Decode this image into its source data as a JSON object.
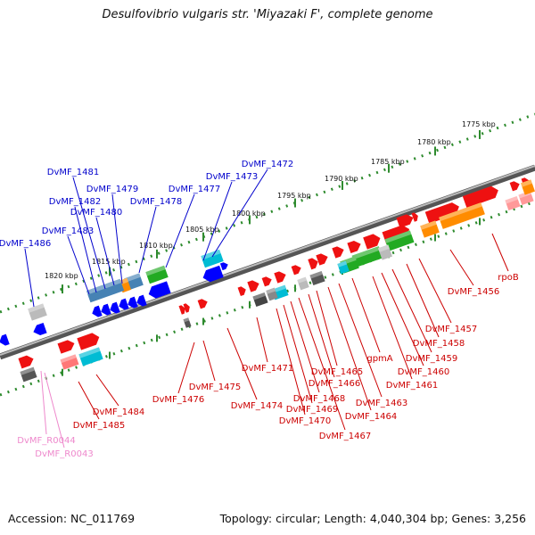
{
  "title": "Desulfovibrio vulgaris str. 'Miyazaki F', complete genome",
  "footer": {
    "accession": "Accession: NC_011769",
    "summary": "Topology: circular; Length: 4,040,304 bp; Genes: 3,256"
  },
  "colors": {
    "forward_gene": "#ff0000",
    "reverse_gene": "#0000ff",
    "forward_label": "#cc0000",
    "reverse_label": "#0000cc",
    "rna_label": "#ee88cc",
    "scale_ticks": "#2e8b2e",
    "backbone": "#888888"
  },
  "scale_labels": [
    "1775 kbp",
    "1780 kbp",
    "1785 kbp",
    "1790 kbp",
    "1795 kbp",
    "1800 kbp",
    "1805 kbp",
    "1810 kbp",
    "1815 kbp",
    "1820 kbp"
  ],
  "reverse_labels": [
    "DvMF_1472",
    "DvMF_1473",
    "DvMF_1477",
    "DvMF_1478",
    "DvMF_1479",
    "DvMF_1480",
    "DvMF_1481",
    "DvMF_1482",
    "DvMF_1483",
    "DvMF_1486"
  ],
  "forward_labels": [
    "rpoB",
    "DvMF_1456",
    "DvMF_1457",
    "DvMF_1458",
    "DvMF_1459",
    "DvMF_1460",
    "DvMF_1461",
    "gpmA",
    "DvMF_1463",
    "DvMF_1464",
    "DvMF_1465",
    "DvMF_1466",
    "DvMF_1467",
    "DvMF_1468",
    "DvMF_1469",
    "DvMF_1470",
    "DvMF_1471",
    "DvMF_1474",
    "DvMF_1475",
    "DvMF_1476",
    "DvMF_1484",
    "DvMF_1485"
  ],
  "rna_labels": [
    "DvMF_R0044",
    "DvMF_R0043"
  ]
}
